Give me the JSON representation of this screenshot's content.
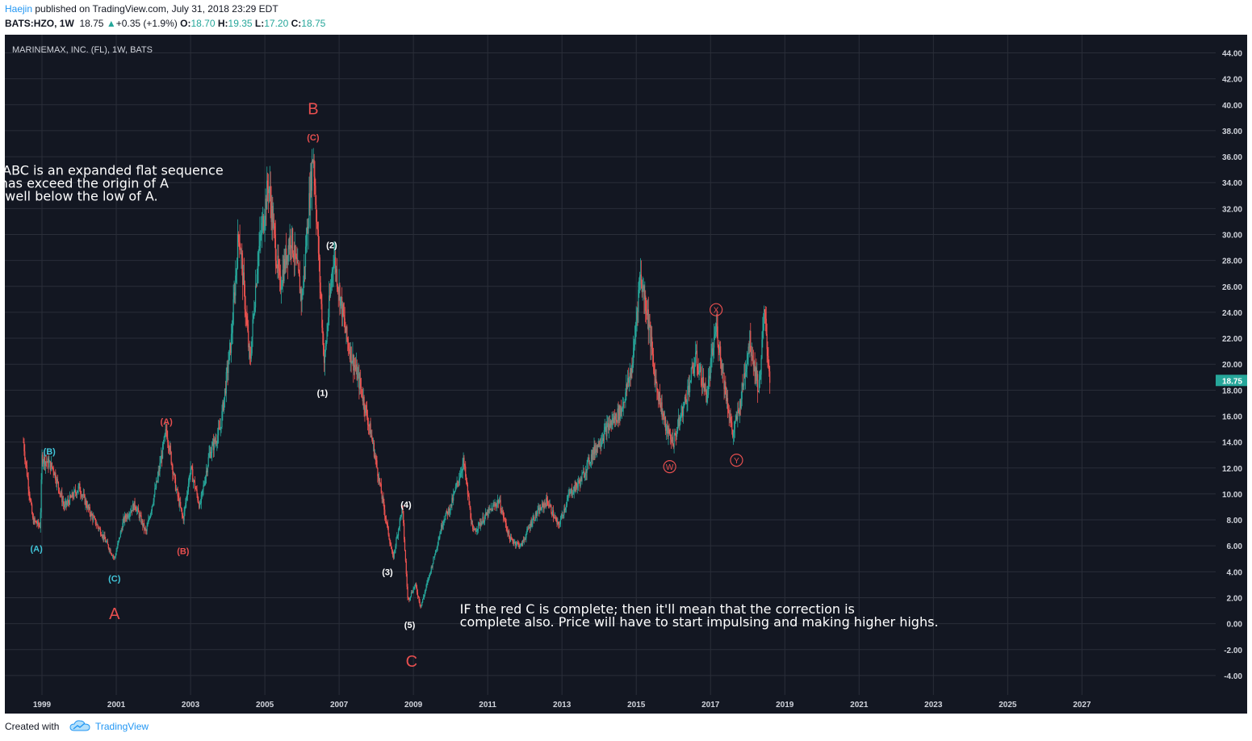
{
  "header": {
    "author": "Haejin",
    "published_text": " published on TradingView.com, July 31, 2018 23:29 EDT",
    "symbol": "BATS:HZO, 1W",
    "last": "18.75",
    "change": "+0.35 (+1.9%)",
    "open_label": "O:",
    "open": "18.70",
    "high_label": "H:",
    "high": "19.35",
    "low_label": "L:",
    "low": "17.20",
    "close_label": "C:",
    "close": "18.75"
  },
  "footer": {
    "created_with": "Created with",
    "brand": "TradingView"
  },
  "colors": {
    "background": "#131722",
    "grid": "#2a2e39",
    "axis_text": "#d1d4dc",
    "up": "#26a69a",
    "down": "#ef5350",
    "wave_red": "#e84f4f",
    "wave_cyan": "#41c5d8",
    "wave_white": "#ffffff",
    "price_tag": "#26a69a"
  },
  "chart_data": {
    "type": "candlestick",
    "title": "MARINEMAX, INC. (FL), 1W, BATS",
    "x_tick_labels": [
      "1999",
      "2001",
      "2003",
      "2005",
      "2007",
      "2009",
      "2011",
      "2013",
      "2015",
      "2017",
      "2019",
      "2021",
      "2023",
      "2025",
      "2027"
    ],
    "y_tick_labels": [
      "44.00",
      "42.00",
      "40.00",
      "38.00",
      "36.00",
      "34.00",
      "32.00",
      "30.00",
      "28.00",
      "26.00",
      "24.00",
      "22.00",
      "20.00",
      "18.00",
      "16.00",
      "14.00",
      "12.00",
      "10.00",
      "8.00",
      "6.00",
      "4.00",
      "2.00",
      "0.00",
      "-2.00",
      "-4.00"
    ],
    "xlim": [
      1998.0,
      2030.6
    ],
    "ylim": [
      -5.5,
      45.4
    ],
    "last_price": "18.75",
    "price_path": [
      [
        1998.5,
        14.0
      ],
      [
        1998.6,
        11.5
      ],
      [
        1998.75,
        8.0
      ],
      [
        1998.95,
        7.5
      ],
      [
        1999.0,
        12.8
      ],
      [
        1999.3,
        12.0
      ],
      [
        1999.6,
        9.0
      ],
      [
        2000.0,
        10.5
      ],
      [
        2000.3,
        8.5
      ],
      [
        2000.6,
        7.0
      ],
      [
        2000.95,
        5.0
      ],
      [
        2001.2,
        8.0
      ],
      [
        2001.5,
        9.2
      ],
      [
        2001.8,
        7.0
      ],
      [
        2002.1,
        11.0
      ],
      [
        2002.35,
        15.0
      ],
      [
        2002.6,
        10.5
      ],
      [
        2002.8,
        8.0
      ],
      [
        2003.0,
        12.0
      ],
      [
        2003.25,
        9.0
      ],
      [
        2003.5,
        13.0
      ],
      [
        2003.8,
        15.0
      ],
      [
        2004.1,
        22.0
      ],
      [
        2004.3,
        30.5
      ],
      [
        2004.6,
        20.0
      ],
      [
        2004.8,
        28.0
      ],
      [
        2005.1,
        34.0
      ],
      [
        2005.4,
        26.0
      ],
      [
        2005.7,
        30.0
      ],
      [
        2006.0,
        25.0
      ],
      [
        2006.3,
        36.5
      ],
      [
        2006.6,
        20.0
      ],
      [
        2006.85,
        28.5
      ],
      [
        2007.2,
        22.0
      ],
      [
        2007.6,
        18.0
      ],
      [
        2007.9,
        14.0
      ],
      [
        2008.2,
        9.0
      ],
      [
        2008.45,
        5.0
      ],
      [
        2008.7,
        9.0
      ],
      [
        2008.85,
        1.8
      ],
      [
        2009.05,
        3.0
      ],
      [
        2009.2,
        1.3
      ],
      [
        2009.5,
        4.5
      ],
      [
        2009.8,
        8.0
      ],
      [
        2010.0,
        9.0
      ],
      [
        2010.35,
        12.5
      ],
      [
        2010.6,
        7.0
      ],
      [
        2011.0,
        8.5
      ],
      [
        2011.3,
        9.5
      ],
      [
        2011.6,
        6.5
      ],
      [
        2011.9,
        6.0
      ],
      [
        2012.2,
        8.0
      ],
      [
        2012.6,
        9.5
      ],
      [
        2012.9,
        7.5
      ],
      [
        2013.2,
        10.0
      ],
      [
        2013.5,
        11.0
      ],
      [
        2013.8,
        13.0
      ],
      [
        2014.2,
        15.0
      ],
      [
        2014.6,
        16.5
      ],
      [
        2014.9,
        20.0
      ],
      [
        2015.1,
        27.0
      ],
      [
        2015.3,
        24.0
      ],
      [
        2015.5,
        19.0
      ],
      [
        2015.8,
        15.0
      ],
      [
        2016.0,
        14.0
      ],
      [
        2016.3,
        17.0
      ],
      [
        2016.6,
        20.5
      ],
      [
        2016.9,
        17.5
      ],
      [
        2017.15,
        23.0
      ],
      [
        2017.4,
        18.0
      ],
      [
        2017.6,
        14.5
      ],
      [
        2017.8,
        17.0
      ],
      [
        2018.05,
        22.0
      ],
      [
        2018.3,
        18.0
      ],
      [
        2018.45,
        24.0
      ],
      [
        2018.6,
        18.75
      ]
    ],
    "wave_labels": [
      {
        "text": "B",
        "x": 2006.3,
        "y": 39.7,
        "color": "red",
        "size": "large"
      },
      {
        "text": "(C)",
        "x": 2006.3,
        "y": 37.5,
        "color": "red",
        "size": "small"
      },
      {
        "text": "(2)",
        "x": 2006.8,
        "y": 29.2,
        "color": "white",
        "size": "small"
      },
      {
        "text": "(1)",
        "x": 2006.55,
        "y": 17.8,
        "color": "white",
        "size": "small"
      },
      {
        "text": "(A)",
        "x": 2002.35,
        "y": 15.6,
        "color": "red",
        "size": "small"
      },
      {
        "text": "(B)",
        "x": 2002.8,
        "y": 5.6,
        "color": "red",
        "size": "small"
      },
      {
        "text": "(B)",
        "x": 1999.2,
        "y": 13.3,
        "color": "cyan",
        "size": "small"
      },
      {
        "text": "(A)",
        "x": 1998.85,
        "y": 5.8,
        "color": "cyan",
        "size": "small"
      },
      {
        "text": "(C)",
        "x": 2000.95,
        "y": 3.5,
        "color": "cyan",
        "size": "small"
      },
      {
        "text": "A",
        "x": 2000.95,
        "y": 0.8,
        "color": "red",
        "size": "large"
      },
      {
        "text": "(4)",
        "x": 2008.8,
        "y": 9.2,
        "color": "white",
        "size": "small"
      },
      {
        "text": "(3)",
        "x": 2008.3,
        "y": 4.0,
        "color": "white",
        "size": "small"
      },
      {
        "text": "(5)",
        "x": 2008.9,
        "y": -0.1,
        "color": "white",
        "size": "small"
      },
      {
        "text": "C",
        "x": 2008.95,
        "y": -2.9,
        "color": "red",
        "size": "large"
      }
    ],
    "circled_labels": [
      {
        "text": "X",
        "x": 2017.15,
        "y": 24.2
      },
      {
        "text": "W",
        "x": 2015.9,
        "y": 12.1
      },
      {
        "text": "Y",
        "x": 2017.7,
        "y": 12.6
      }
    ],
    "annotations": [
      {
        "lines": [
          "The red ABC is an expanded flat sequence",
          "since B has exceed the origin of A",
          "and C is well below the low of A."
        ],
        "x": 1996.5,
        "y": 34.6
      },
      {
        "lines": [
          "IF the red C is complete; then it'll mean that the correction is",
          "complete also. Price will have to start impulsing and making higher highs."
        ],
        "x": 2010.25,
        "y": 0.8
      }
    ],
    "grid": true
  }
}
